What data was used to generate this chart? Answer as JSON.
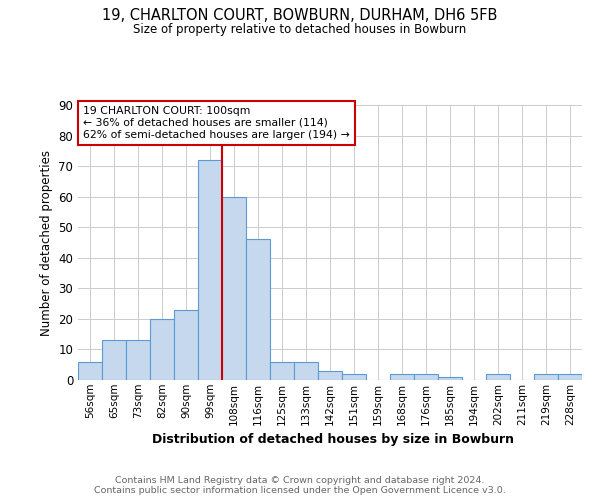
{
  "title1": "19, CHARLTON COURT, BOWBURN, DURHAM, DH6 5FB",
  "title2": "Size of property relative to detached houses in Bowburn",
  "xlabel": "Distribution of detached houses by size in Bowburn",
  "ylabel": "Number of detached properties",
  "footnote": "Contains HM Land Registry data © Crown copyright and database right 2024.\nContains public sector information licensed under the Open Government Licence v3.0.",
  "annotation_line1": "19 CHARLTON COURT: 100sqm",
  "annotation_line2": "← 36% of detached houses are smaller (114)",
  "annotation_line3": "62% of semi-detached houses are larger (194) →",
  "bar_labels": [
    "56sqm",
    "65sqm",
    "73sqm",
    "82sqm",
    "90sqm",
    "99sqm",
    "108sqm",
    "116sqm",
    "125sqm",
    "133sqm",
    "142sqm",
    "151sqm",
    "159sqm",
    "168sqm",
    "176sqm",
    "185sqm",
    "194sqm",
    "202sqm",
    "211sqm",
    "219sqm",
    "228sqm"
  ],
  "bar_values": [
    6,
    13,
    13,
    20,
    23,
    72,
    60,
    46,
    6,
    6,
    3,
    2,
    0,
    2,
    2,
    1,
    0,
    2,
    0,
    2,
    2
  ],
  "bar_color": "#c5d8ed",
  "bar_edge_color": "#5b9bd5",
  "ylim": [
    0,
    90
  ],
  "yticks": [
    0,
    10,
    20,
    30,
    40,
    50,
    60,
    70,
    80,
    90
  ],
  "annotation_box_color": "#cc0000",
  "vline_color": "#cc0000",
  "bg_color": "#ffffff",
  "grid_color": "#cccccc"
}
